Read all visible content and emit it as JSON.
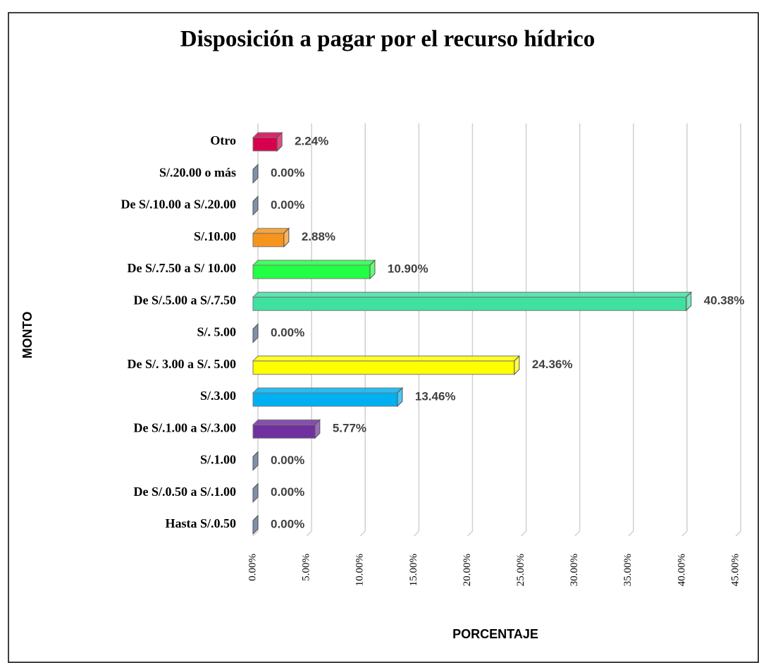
{
  "chart_data": {
    "type": "bar",
    "orientation": "horizontal",
    "title": "Disposición a pagar por el recurso hídrico",
    "xlabel": "PORCENTAJE",
    "ylabel": "MONTO",
    "categories": [
      "Otro",
      "S/.20.00 o más",
      "De S/.10.00 a S/.20.00",
      "S/.10.00",
      "De S/.7.50 a S/ 10.00",
      "De S/.5.00 a S/.7.50",
      "S/. 5.00",
      "De S/. 3.00 a S/. 5.00",
      "S/.3.00",
      "De S/.1.00 a S/.3.00",
      "S/.1.00",
      "De S/.0.50 a S/.1.00",
      "Hasta S/.0.50"
    ],
    "values": [
      2.24,
      0,
      0,
      2.88,
      10.9,
      40.38,
      0,
      24.36,
      13.46,
      5.77,
      0,
      0,
      0
    ],
    "value_labels": [
      "2.24%",
      "0.00%",
      "0.00%",
      "2.88%",
      "10.90%",
      "40.38%",
      "0.00%",
      "24.36%",
      "13.46%",
      "5.77%",
      "0.00%",
      "0.00%",
      "0.00%"
    ],
    "colors": [
      "#d6004f",
      "#4a5f8a",
      "#4a5f8a",
      "#f7941d",
      "#22ff44",
      "#40e0a0",
      "#4a5f8a",
      "#ffff00",
      "#00b0f0",
      "#7030a0",
      "#4a5f8a",
      "#4a5f8a",
      "#4a5f8a"
    ],
    "xlim": [
      0,
      45
    ],
    "xticks": [
      {
        "value": 0,
        "label": "0.00%"
      },
      {
        "value": 5,
        "label": "5.00%"
      },
      {
        "value": 10,
        "label": "10.00%"
      },
      {
        "value": 15,
        "label": "15.00%"
      },
      {
        "value": 20,
        "label": "20.00%"
      },
      {
        "value": 25,
        "label": "25.00%"
      },
      {
        "value": 30,
        "label": "30.00%"
      },
      {
        "value": 35,
        "label": "35.00%"
      },
      {
        "value": 40,
        "label": "40.00%"
      },
      {
        "value": 45,
        "label": "45.00%"
      }
    ],
    "grid": true
  }
}
